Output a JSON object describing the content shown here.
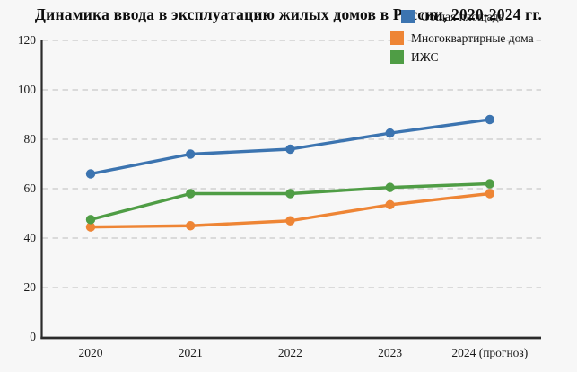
{
  "page": {
    "background_color": "#f7f7f7",
    "text_color": "#111111",
    "gridline_color": "#c9c9c9",
    "axis_color": "#2b2b2b"
  },
  "chart_data": {
    "type": "line",
    "title": "Динамика ввода в эксплуатацию жилых домов в России, 2020-2024 гг.",
    "categories": [
      "2020",
      "2021",
      "2022",
      "2023",
      "2024 (прогноз)"
    ],
    "series": [
      {
        "name": "Общая площадь",
        "color": "#3c74b0",
        "values": [
          66,
          74,
          76,
          82.5,
          88
        ]
      },
      {
        "name": "Многоквартирные дома",
        "color": "#ee8535",
        "values": [
          44.5,
          45,
          47,
          53.5,
          58
        ]
      },
      {
        "name": "ИЖС",
        "color": "#4f9d45",
        "values": [
          47.5,
          58,
          58,
          60.5,
          62
        ]
      }
    ],
    "xlabel": "",
    "ylabel": "",
    "y_ticks": [
      0,
      20,
      40,
      60,
      80,
      100,
      120
    ],
    "ylim": [
      0,
      120
    ],
    "grid": "horizontal-dashed",
    "legend_position": "top-right",
    "marker": "circle"
  }
}
